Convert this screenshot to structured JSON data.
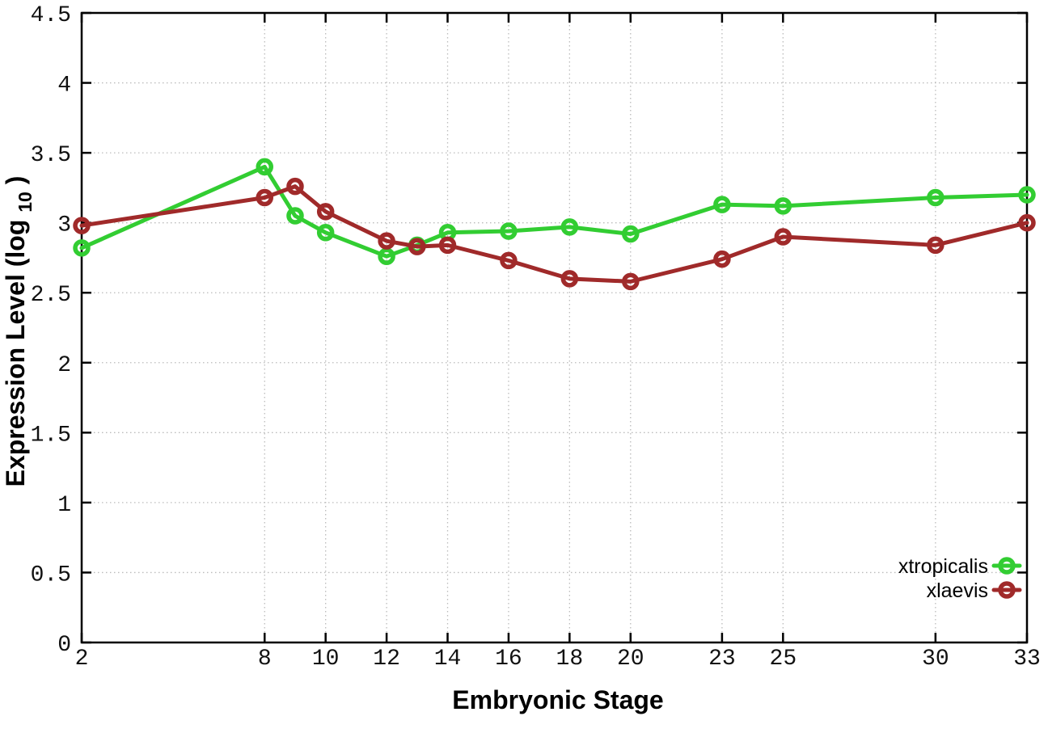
{
  "chart_data": {
    "type": "line",
    "title": "",
    "xlabel": "Embryonic Stage",
    "ylabel": "Expression Level (log10)",
    "ylabel_parts": {
      "pre": "Expression Level (log",
      "sub": "10",
      "post": ")"
    },
    "x": [
      2,
      8,
      9,
      10,
      12,
      13,
      14,
      16,
      18,
      20,
      23,
      25,
      30,
      33
    ],
    "x_tick_labels": [
      "2",
      "8",
      "10",
      "12",
      "14",
      "16",
      "18",
      "20",
      "23",
      "25",
      "30",
      "33"
    ],
    "x_tick_values": [
      2,
      8,
      10,
      12,
      14,
      16,
      18,
      20,
      23,
      25,
      30,
      33
    ],
    "y_ticks": [
      0,
      0.5,
      1,
      1.5,
      2,
      2.5,
      3,
      3.5,
      4,
      4.5
    ],
    "xlim": [
      2,
      33
    ],
    "ylim": [
      0,
      4.5
    ],
    "grid": true,
    "marker": "open-circle",
    "legend_position": "bottom-right",
    "colors": {
      "border": "#000000",
      "grid": "#bbbbbb",
      "background": "#ffffff",
      "xtropicalis": "#32cd32",
      "xlaevis": "#a02a2a"
    },
    "series": [
      {
        "name": "xtropicalis",
        "color": "#32cd32",
        "values": [
          2.82,
          3.4,
          3.05,
          2.93,
          2.76,
          2.84,
          2.93,
          2.94,
          2.97,
          2.92,
          3.13,
          3.12,
          3.18,
          3.2
        ]
      },
      {
        "name": "xlaevis",
        "color": "#a02a2a",
        "values": [
          2.98,
          3.18,
          3.26,
          3.08,
          2.87,
          2.83,
          2.84,
          2.73,
          2.6,
          2.58,
          2.74,
          2.9,
          2.84,
          3.0
        ]
      }
    ]
  }
}
